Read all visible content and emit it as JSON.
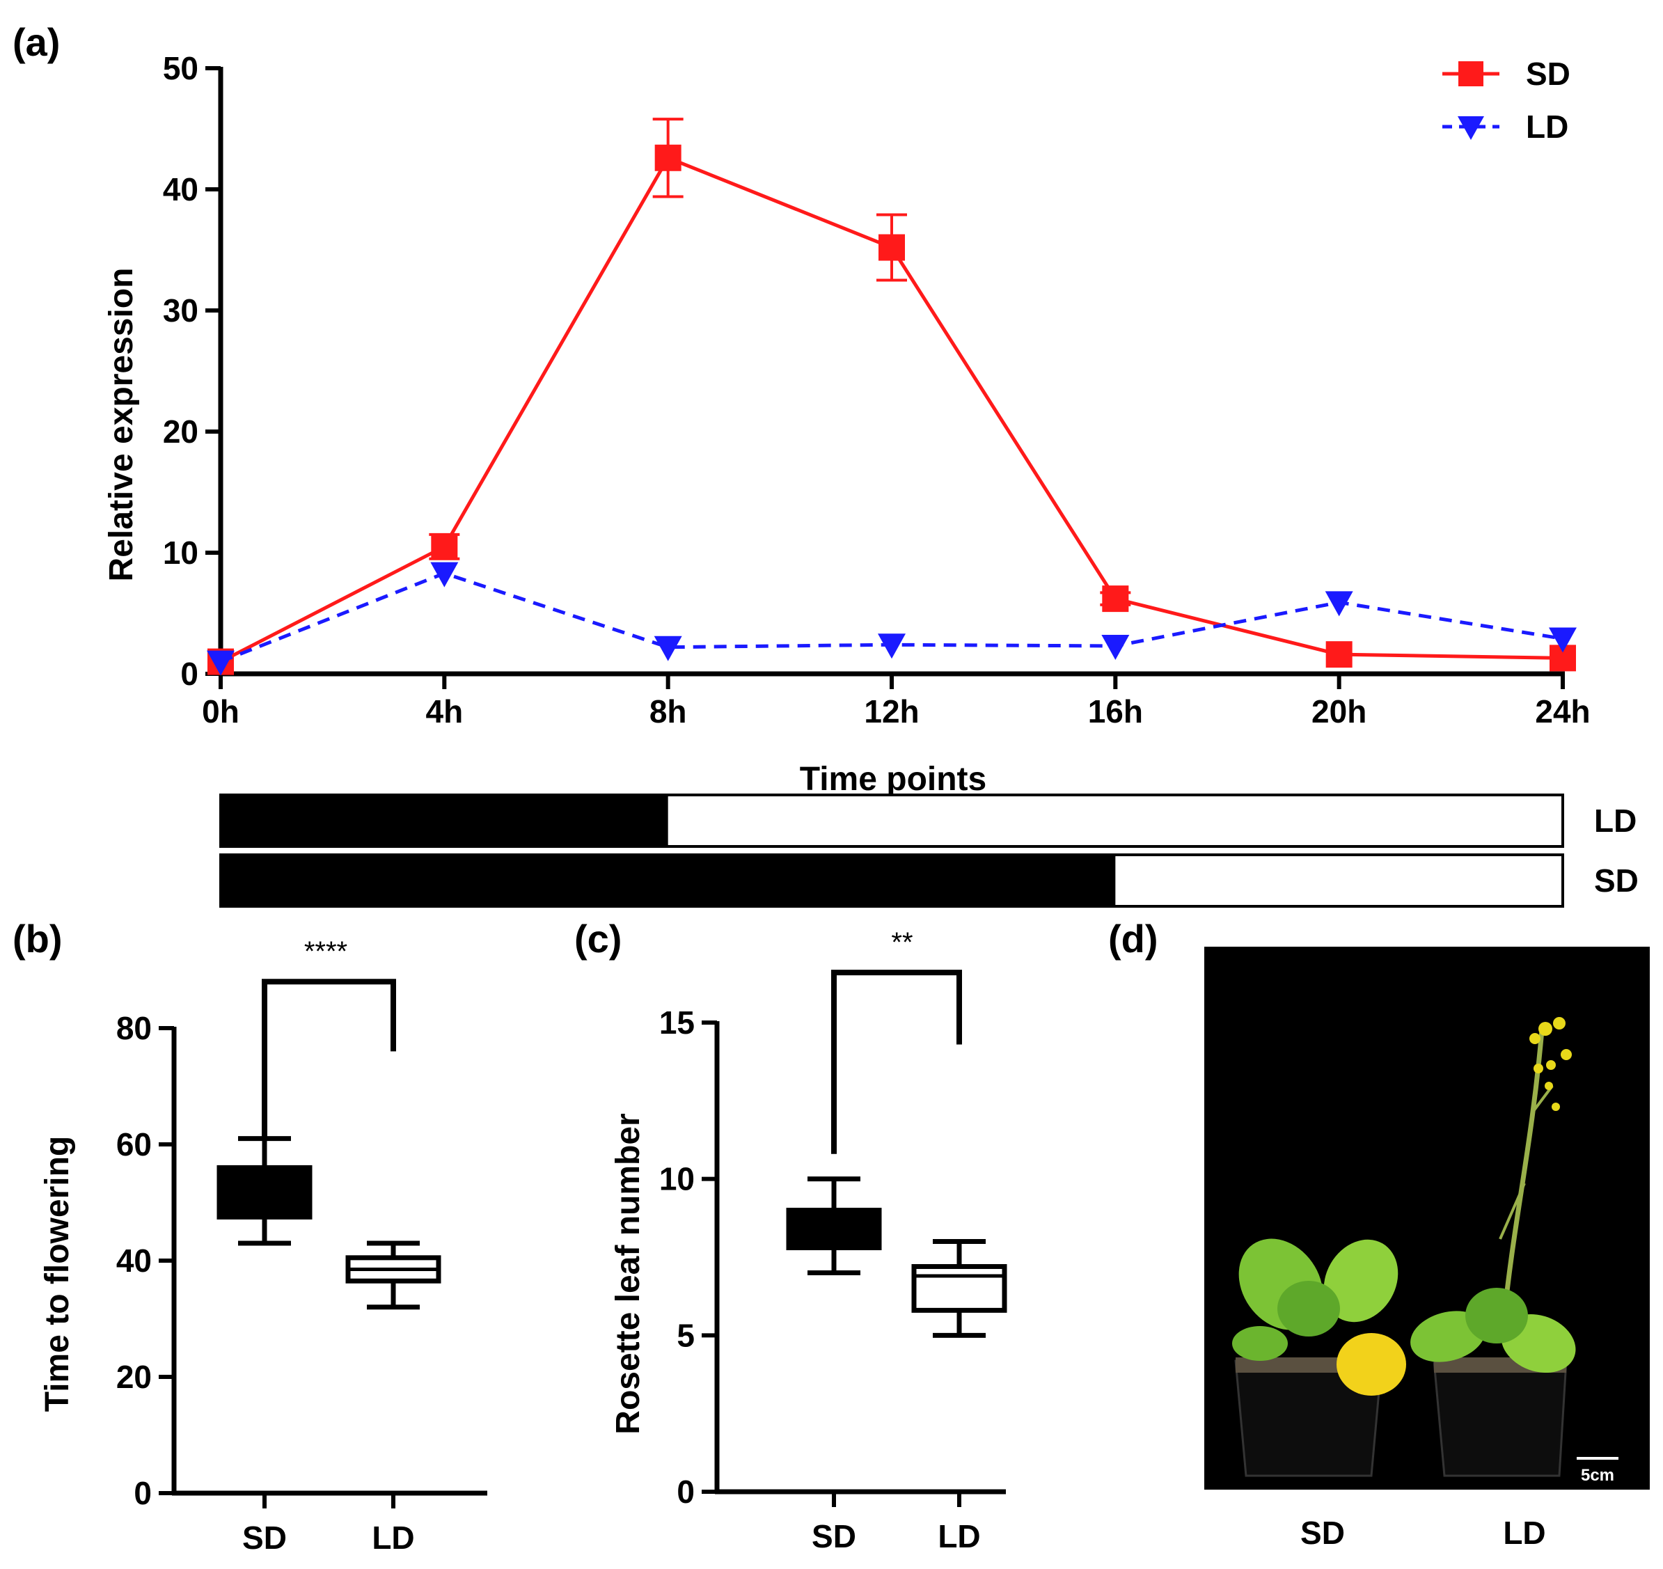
{
  "panels": {
    "a": "(a)",
    "b": "(b)",
    "c": "(c)",
    "d": "(d)"
  },
  "colors": {
    "sd": "#ff1a1a",
    "ld": "#1a1aff",
    "axis": "#000000"
  },
  "photo": {
    "labels": [
      "SD",
      "LD"
    ],
    "scale_bar": "5cm"
  },
  "chart_data": [
    {
      "type": "line",
      "panel": "a",
      "xlabel": "Time points",
      "ylabel": "Relative  expression",
      "categories": [
        "0h",
        "4h",
        "8h",
        "12h",
        "16h",
        "20h",
        "24h"
      ],
      "ylim": [
        0,
        50
      ],
      "yticks": [
        0,
        10,
        20,
        30,
        40,
        50
      ],
      "legend_position": "top-right",
      "series": [
        {
          "name": "SD",
          "values": [
            1.0,
            10.5,
            42.6,
            35.2,
            6.2,
            1.6,
            1.3
          ],
          "errors": [
            0.3,
            1.0,
            3.2,
            2.7,
            0.5,
            0.3,
            0.3
          ],
          "marker": "square",
          "line": "solid"
        },
        {
          "name": "LD",
          "values": [
            1.0,
            8.3,
            2.2,
            2.4,
            2.3,
            5.9,
            2.9
          ],
          "errors": [
            0,
            0.3,
            0.2,
            0.2,
            0.2,
            0.4,
            0.2
          ],
          "marker": "triangle-down",
          "line": "dashed"
        }
      ],
      "photoperiod": [
        {
          "label": "LD",
          "dark_until": "8h"
        },
        {
          "label": "SD",
          "dark_until": "16h"
        }
      ]
    },
    {
      "type": "box",
      "panel": "b",
      "ylabel": "Time to flowering",
      "categories": [
        "SD",
        "LD"
      ],
      "ylim": [
        0,
        80
      ],
      "yticks": [
        0,
        20,
        40,
        60,
        80
      ],
      "boxes": [
        {
          "min": 43,
          "q1": 47.5,
          "median": 52,
          "q3": 56,
          "max": 61,
          "fill": "filled"
        },
        {
          "min": 32,
          "q1": 36.5,
          "median": 38.5,
          "q3": 40.5,
          "max": 43,
          "fill": "open"
        }
      ],
      "significance": "****",
      "bracket": {
        "top": 88,
        "left_end": 61,
        "right_end": 76
      }
    },
    {
      "type": "box",
      "panel": "c",
      "ylabel": "Rosette leaf number",
      "categories": [
        "SD",
        "LD"
      ],
      "ylim": [
        0,
        15
      ],
      "yticks": [
        0,
        5,
        10,
        15
      ],
      "boxes": [
        {
          "min": 7,
          "q1": 7.8,
          "median": 8.4,
          "q3": 9,
          "max": 10,
          "fill": "filled"
        },
        {
          "min": 5,
          "q1": 5.8,
          "median": 6.9,
          "q3": 7.2,
          "max": 8,
          "fill": "open"
        }
      ],
      "significance": "**",
      "bracket": {
        "top": 16.6,
        "left_end": 10.8,
        "right_end": 14.3
      }
    }
  ]
}
